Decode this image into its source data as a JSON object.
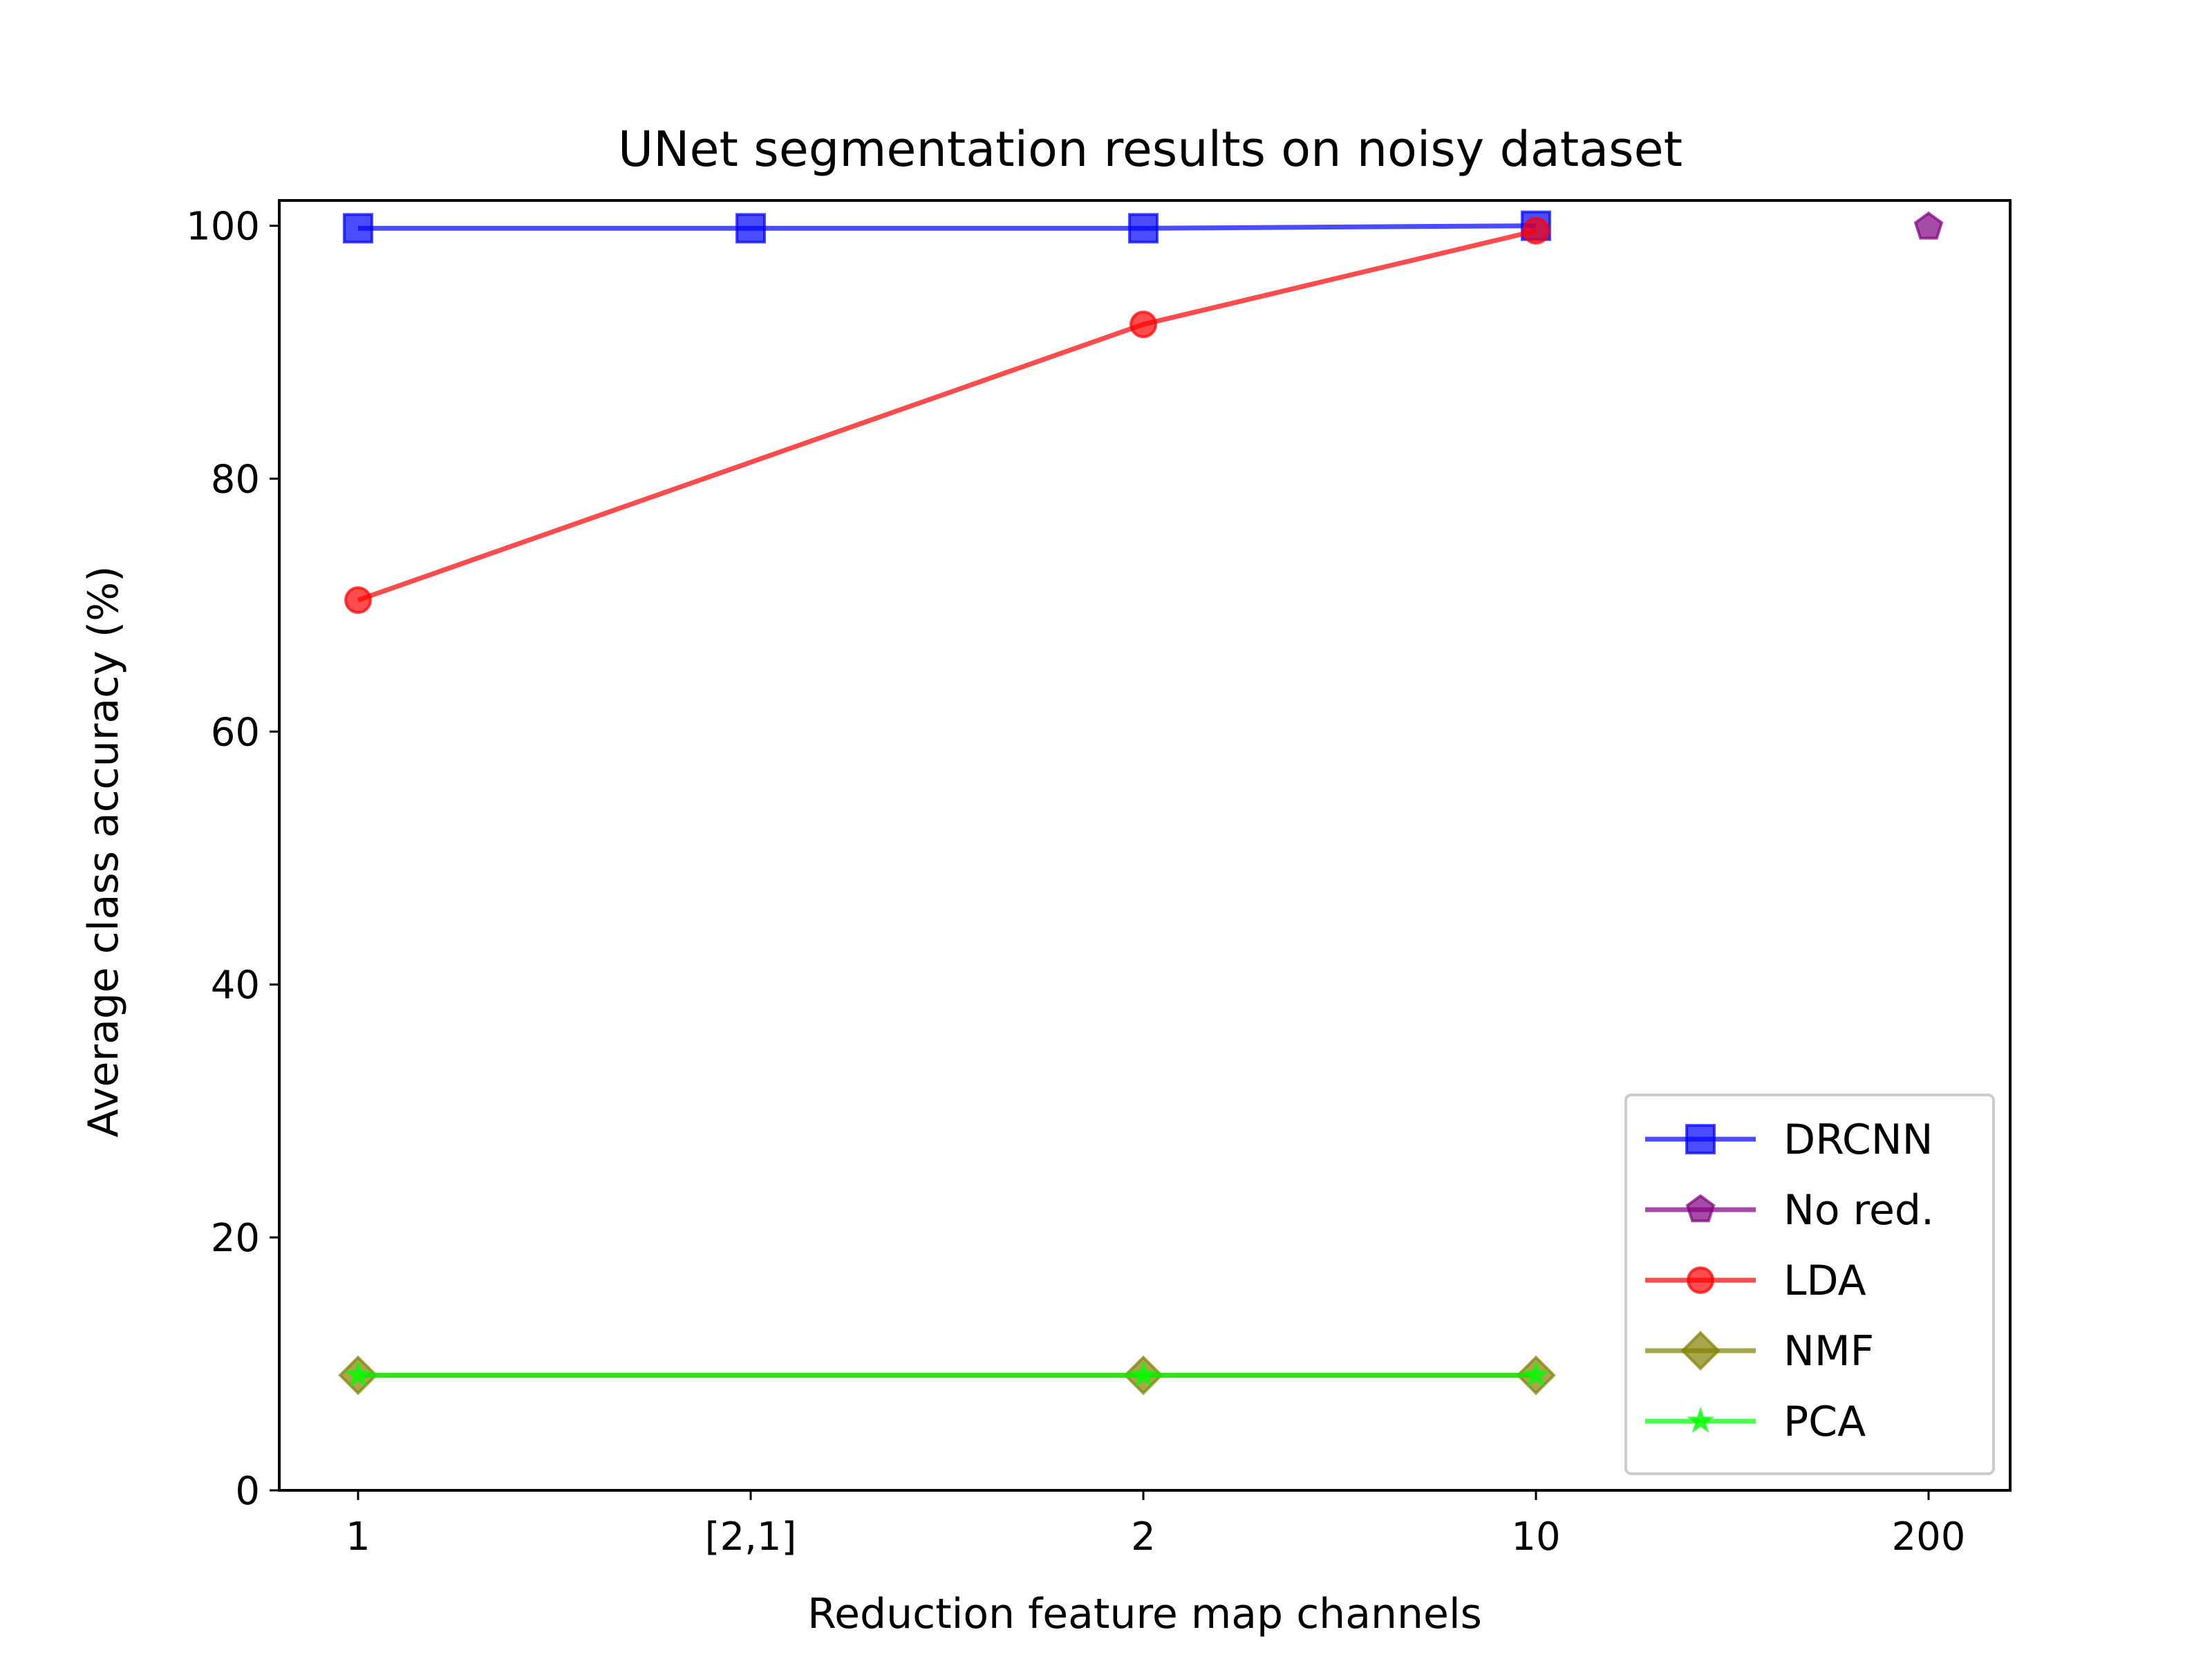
{
  "chart_data": {
    "type": "line",
    "title": "UNet segmentation results on noisy dataset",
    "xlabel": "Reduction feature map channels",
    "ylabel": "Average class accuracy (%)",
    "categories": [
      "1",
      "[2,1]",
      "2",
      "10",
      "200"
    ],
    "yticks": [
      "0",
      "20",
      "40",
      "60",
      "80",
      "100"
    ],
    "ylim": [
      0,
      102
    ],
    "legend_position": "lower-right",
    "grid": false,
    "series": [
      {
        "name": "DRCNN",
        "color": "#0000ff",
        "marker": "square",
        "values": [
          99.8,
          99.8,
          99.8,
          100.0,
          null
        ]
      },
      {
        "name": "No red.",
        "color": "#800080",
        "marker": "pentagon",
        "values": [
          null,
          null,
          null,
          null,
          99.9
        ]
      },
      {
        "name": "LDA",
        "color": "#ff0000",
        "marker": "circle",
        "values": [
          70.4,
          null,
          92.2,
          99.6,
          null
        ]
      },
      {
        "name": "NMF",
        "color": "#808000",
        "marker": "diamond",
        "values": [
          9.1,
          null,
          9.1,
          9.1,
          null
        ]
      },
      {
        "name": "PCA",
        "color": "#00ff00",
        "marker": "star",
        "values": [
          9.1,
          null,
          9.1,
          9.1,
          null
        ]
      }
    ]
  }
}
